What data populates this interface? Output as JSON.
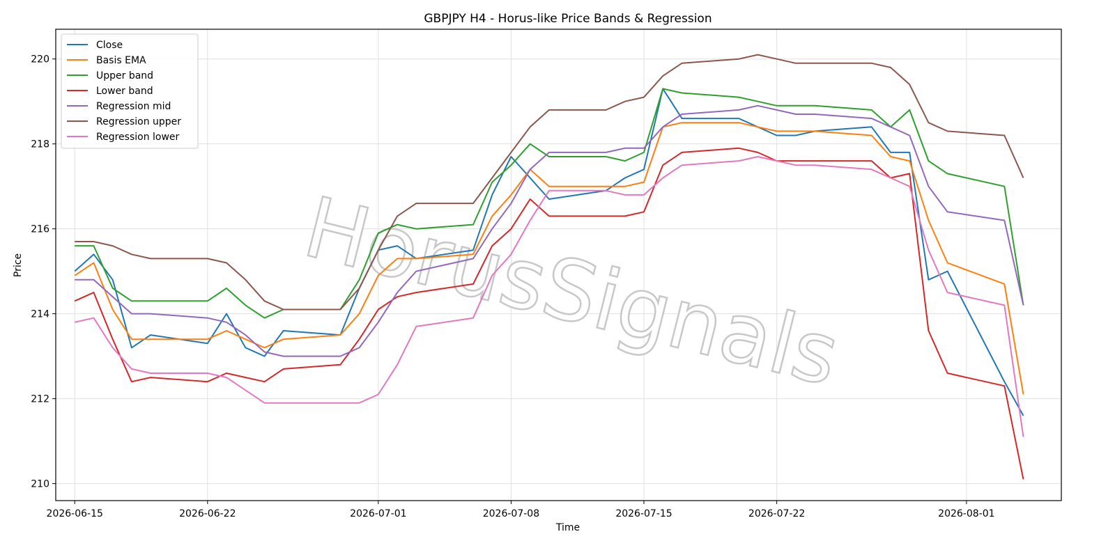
{
  "chart_data": {
    "type": "line",
    "title": "GBPJPY H4 - Horus-like Price Bands & Regression",
    "xlabel": "Time",
    "ylabel": "Price",
    "xlim": [
      "2026-06-14",
      "2026-08-06"
    ],
    "ylim": [
      209.6,
      220.7
    ],
    "x_ticks": [
      "2026-06-15",
      "2026-06-22",
      "2026-07-01",
      "2026-07-08",
      "2026-07-15",
      "2026-07-22",
      "2026-08-01"
    ],
    "y_ticks": [
      210,
      212,
      214,
      216,
      218,
      220
    ],
    "grid": true,
    "legend_position": "top-left",
    "watermark": "HorusSignals",
    "x": [
      "2026-06-15",
      "2026-06-16",
      "2026-06-17",
      "2026-06-18",
      "2026-06-19",
      "2026-06-22",
      "2026-06-23",
      "2026-06-24",
      "2026-06-25",
      "2026-06-26",
      "2026-06-29",
      "2026-06-30",
      "2026-07-01",
      "2026-07-02",
      "2026-07-03",
      "2026-07-06",
      "2026-07-07",
      "2026-07-08",
      "2026-07-09",
      "2026-07-10",
      "2026-07-13",
      "2026-07-14",
      "2026-07-15",
      "2026-07-16",
      "2026-07-17",
      "2026-07-20",
      "2026-07-21",
      "2026-07-22",
      "2026-07-23",
      "2026-07-24",
      "2026-07-27",
      "2026-07-28",
      "2026-07-29",
      "2026-07-30",
      "2026-07-31",
      "2026-08-03",
      "2026-08-04"
    ],
    "series": [
      {
        "name": "Close",
        "color": "#1f77b4",
        "values": [
          215.0,
          215.4,
          214.8,
          213.2,
          213.5,
          213.3,
          214.0,
          213.2,
          213.0,
          213.6,
          213.5,
          214.6,
          215.5,
          215.6,
          215.3,
          215.5,
          216.8,
          217.7,
          217.2,
          216.7,
          216.9,
          217.2,
          217.4,
          219.3,
          218.6,
          218.6,
          218.4,
          218.2,
          218.2,
          218.3,
          218.4,
          217.8,
          217.8,
          214.8,
          215.0,
          212.4,
          211.6
        ]
      },
      {
        "name": "Basis EMA",
        "color": "#ff7f0e",
        "values": [
          214.9,
          215.2,
          214.1,
          213.4,
          213.4,
          213.4,
          213.6,
          213.4,
          213.2,
          213.4,
          213.5,
          214.0,
          214.9,
          215.3,
          215.3,
          215.4,
          216.3,
          216.8,
          217.4,
          217.0,
          217.0,
          217.0,
          217.1,
          218.4,
          218.5,
          218.5,
          218.4,
          218.3,
          218.3,
          218.3,
          218.2,
          217.7,
          217.6,
          216.2,
          215.2,
          214.7,
          212.1
        ]
      },
      {
        "name": "Upper band",
        "color": "#2ca02c",
        "values": [
          215.6,
          215.6,
          214.6,
          214.3,
          214.3,
          214.3,
          214.6,
          214.2,
          213.9,
          214.1,
          214.1,
          214.8,
          215.9,
          216.1,
          216.0,
          216.1,
          217.1,
          217.5,
          218.0,
          217.7,
          217.7,
          217.6,
          217.8,
          219.3,
          219.2,
          219.1,
          219.0,
          218.9,
          218.9,
          218.9,
          218.8,
          218.4,
          218.8,
          217.6,
          217.3,
          217.0,
          214.2
        ]
      },
      {
        "name": "Lower band",
        "color": "#d62728",
        "values": [
          214.3,
          214.5,
          213.4,
          212.4,
          212.5,
          212.4,
          212.6,
          212.5,
          212.4,
          212.7,
          212.8,
          213.4,
          214.1,
          214.4,
          214.5,
          214.7,
          215.6,
          216.0,
          216.7,
          216.3,
          216.3,
          216.3,
          216.4,
          217.5,
          217.8,
          217.9,
          217.8,
          217.6,
          217.6,
          217.6,
          217.6,
          217.2,
          217.3,
          213.6,
          212.6,
          212.3,
          210.1
        ]
      },
      {
        "name": "Regression mid",
        "color": "#9467bd",
        "values": [
          214.8,
          214.8,
          214.4,
          214.0,
          214.0,
          213.9,
          213.8,
          213.5,
          213.1,
          213.0,
          213.0,
          213.2,
          213.8,
          214.5,
          215.0,
          215.3,
          216.0,
          216.6,
          217.4,
          217.8,
          217.8,
          217.9,
          217.9,
          218.4,
          218.7,
          218.8,
          218.9,
          218.8,
          218.7,
          218.7,
          218.6,
          218.4,
          218.2,
          217.0,
          216.4,
          216.2,
          214.2
        ]
      },
      {
        "name": "Regression upper",
        "color": "#8c564b",
        "values": [
          215.7,
          215.7,
          215.6,
          215.4,
          215.3,
          215.3,
          215.2,
          214.8,
          214.3,
          214.1,
          214.1,
          214.6,
          215.5,
          216.3,
          216.6,
          216.6,
          217.2,
          217.8,
          218.4,
          218.8,
          218.8,
          219.0,
          219.1,
          219.6,
          219.9,
          220.0,
          220.1,
          220.0,
          219.9,
          219.9,
          219.9,
          219.8,
          219.4,
          218.5,
          218.3,
          218.2,
          217.2
        ]
      },
      {
        "name": "Regression lower",
        "color": "#e377c2",
        "values": [
          213.8,
          213.9,
          213.2,
          212.7,
          212.6,
          212.6,
          212.5,
          212.2,
          211.9,
          211.9,
          211.9,
          211.9,
          212.1,
          212.8,
          213.7,
          213.9,
          214.9,
          215.4,
          216.2,
          216.9,
          216.9,
          216.8,
          216.8,
          217.2,
          217.5,
          217.6,
          217.7,
          217.6,
          217.5,
          217.5,
          217.4,
          217.2,
          217.0,
          215.5,
          214.5,
          214.2,
          211.1
        ]
      }
    ]
  }
}
